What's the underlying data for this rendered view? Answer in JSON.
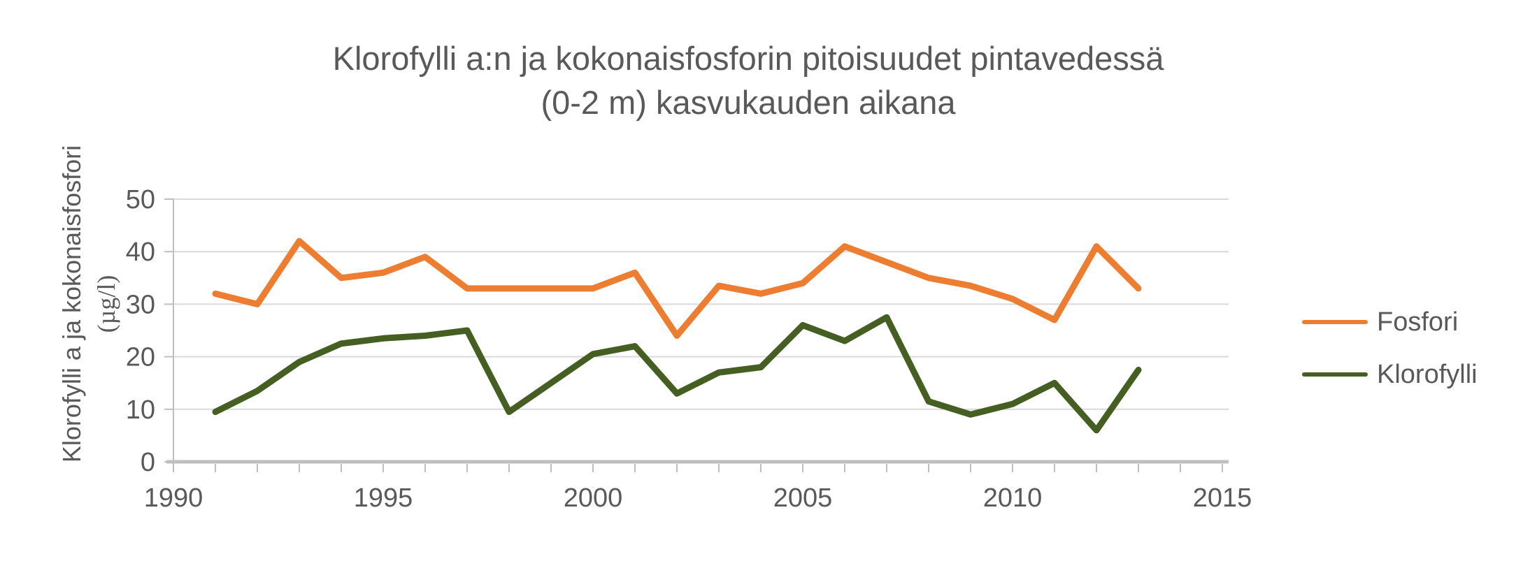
{
  "chart_data": {
    "type": "line",
    "title_line1": "Klorofylli a:n ja kokonaisfosforin pitoisuudet pintavedessä",
    "title_line2": "(0-2 m) kasvukauden aikana",
    "ylabel_line1": "Klorofylli a ja kokonaisfosfori",
    "ylabel_line2": "(µg/l)",
    "x": [
      1991,
      1992,
      1993,
      1994,
      1995,
      1996,
      1997,
      1998,
      1999,
      2000,
      2001,
      2002,
      2003,
      2004,
      2005,
      2006,
      2007,
      2008,
      2009,
      2010,
      2011,
      2012,
      2013
    ],
    "series": [
      {
        "name": "Fosfori",
        "color": "#ED7D31",
        "values": [
          32,
          30,
          42,
          35,
          36,
          39,
          33,
          33,
          33,
          33,
          36,
          24,
          33.5,
          32,
          34,
          41,
          38,
          35,
          33.5,
          31,
          27,
          41,
          33
        ]
      },
      {
        "name": "Klorofylli",
        "color": "#455F23",
        "values": [
          9.5,
          13.5,
          19,
          22.5,
          23.5,
          24,
          25,
          9.5,
          15,
          20.5,
          22,
          13,
          17,
          18,
          26,
          23,
          27.5,
          11.5,
          9,
          11,
          15,
          6,
          17.5
        ]
      }
    ],
    "xticks": [
      1990,
      1995,
      2000,
      2005,
      2010,
      2015
    ],
    "xlim": [
      1990,
      2015
    ],
    "yticks": [
      0,
      10,
      20,
      30,
      40,
      50
    ],
    "ylim": [
      0,
      50
    ],
    "grid": true,
    "legend_position": "right",
    "colors": {
      "text": "#595959",
      "gridline": "#D9D9D9",
      "axis": "#BFBFBF"
    }
  }
}
